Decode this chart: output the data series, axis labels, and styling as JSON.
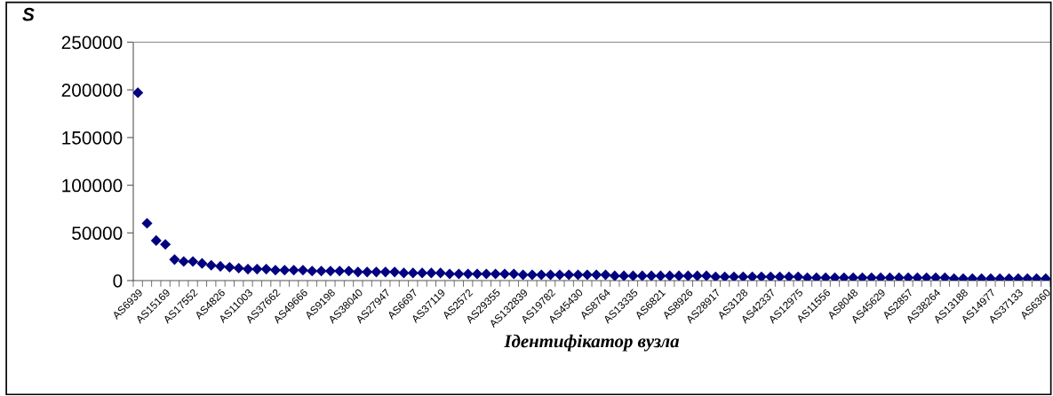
{
  "chart_data": {
    "type": "scatter",
    "xlabel": "Ідентифікатор вузла",
    "ylabel": "S",
    "categories": [
      "AS6939",
      null,
      null,
      "AS15169",
      null,
      null,
      "AS17552",
      null,
      null,
      "AS4826",
      null,
      null,
      "AS11003",
      null,
      null,
      "AS37662",
      null,
      null,
      "AS49666",
      null,
      null,
      "AS9198",
      null,
      null,
      "AS38040",
      null,
      null,
      "AS27947",
      null,
      null,
      "AS6697",
      null,
      null,
      "AS37119",
      null,
      null,
      "AS2572",
      null,
      null,
      "AS29355",
      null,
      null,
      "AS132839",
      null,
      null,
      "AS19782",
      null,
      null,
      "AS45430",
      null,
      null,
      "AS8764",
      null,
      null,
      "AS13335",
      null,
      null,
      "AS6821",
      null,
      null,
      "AS8926",
      null,
      null,
      "AS28917",
      null,
      null,
      "AS3128",
      null,
      null,
      "AS42337",
      null,
      null,
      "AS12975",
      null,
      null,
      "AS11556",
      null,
      null,
      "AS8048",
      null,
      null,
      "AS45629",
      null,
      null,
      "AS2857",
      null,
      null,
      "AS38264",
      null,
      null,
      "AS13188",
      null,
      null,
      "AS14977",
      null,
      null,
      "AS37133",
      null,
      null,
      "AS6360"
    ],
    "series": [
      {
        "color": "#000080",
        "values": [
          197000,
          60000,
          42000,
          38000,
          22000,
          20000,
          20000,
          18000,
          16000,
          15000,
          14000,
          13000,
          12000,
          12000,
          12000,
          11000,
          11000,
          11000,
          11000,
          10000,
          10000,
          10000,
          10000,
          10000,
          9000,
          9000,
          9000,
          9000,
          9000,
          8000,
          8000,
          8000,
          8000,
          8000,
          7000,
          7000,
          7000,
          7000,
          7000,
          7000,
          7000,
          7000,
          6000,
          6000,
          6000,
          6000,
          6000,
          6000,
          6000,
          6000,
          6000,
          6000,
          5000,
          5000,
          5000,
          5000,
          5000,
          5000,
          5000,
          5000,
          5000,
          5000,
          5000,
          4000,
          4000,
          4000,
          4000,
          4000,
          4000,
          4000,
          4000,
          4000,
          4000,
          3000,
          3000,
          3000,
          3000,
          3000,
          3000,
          3000,
          3000,
          3000,
          3000,
          3000,
          3000,
          3000,
          3000,
          3000,
          3000,
          2000,
          2000,
          2000,
          2000,
          2000,
          2000,
          2000,
          2000,
          2000,
          2000,
          2000
        ]
      }
    ],
    "ylim": [
      0,
      250000
    ],
    "yticks": [
      0,
      50000,
      100000,
      150000,
      200000,
      250000
    ],
    "marker": "diamond",
    "grid": false
  }
}
